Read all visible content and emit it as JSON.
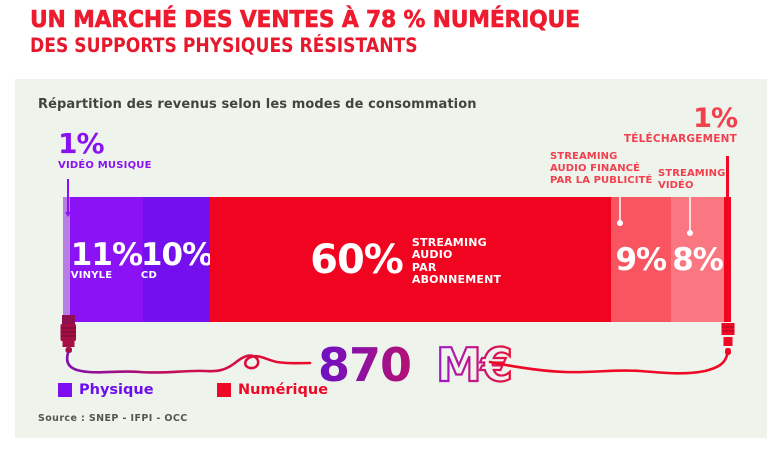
{
  "header": {
    "title": "UN MARCHÉ DES VENTES À 78 % NUMÉRIQUE",
    "subtitle": "DES SUPPORTS PHYSIQUES RÉSISTANTS"
  },
  "panel": {
    "title": "Répartition des revenus selon les modes de consommation",
    "background": "#eef3ec"
  },
  "chart_data": {
    "type": "bar",
    "title": "Répartition des revenus selon les modes de consommation",
    "unit": "% of recorded music revenue",
    "total": {
      "value": 870,
      "display_value": "870",
      "display_unit": "M€"
    },
    "segments": [
      {
        "name": "Vidéo musique",
        "value": 1,
        "display": "1%",
        "bar_label": "",
        "category": "Physique",
        "color": "#b77fe6"
      },
      {
        "name": "Vinyle",
        "value": 11,
        "display": "11%",
        "bar_label": "VINYLE",
        "category": "Physique",
        "color": "#8a12f4"
      },
      {
        "name": "CD",
        "value": 10,
        "display": "10%",
        "bar_label": "CD",
        "category": "Physique",
        "color": "#7410ed"
      },
      {
        "name": "Streaming audio par abonnement",
        "value": 60,
        "display": "60%",
        "bar_label": "STREAMING AUDIO\nPAR ABONNEMENT",
        "category": "Numérique",
        "color": "#f1041f"
      },
      {
        "name": "Streaming audio financé par la publicité",
        "value": 9,
        "display": "9%",
        "bar_label": "",
        "category": "Numérique",
        "color": "#f95560"
      },
      {
        "name": "Streaming vidéo",
        "value": 8,
        "display": "8%",
        "bar_label": "",
        "category": "Numérique",
        "color": "#fa7680"
      },
      {
        "name": "Téléchargement",
        "value": 1,
        "display": "1%",
        "bar_label": "",
        "category": "Numérique",
        "color": "#f1041f"
      }
    ],
    "annotations": {
      "video_musique": {
        "value": "1%",
        "label": "VIDÉO MUSIQUE"
      },
      "pub": "STREAMING\nAUDIO FINANCÉ\nPAR LA PUBLICITÉ",
      "video": "STREAMING\nVIDÉO",
      "telechargement": {
        "value": "1%",
        "label": "TÉLÉCHARGEMENT"
      }
    },
    "legend_position": "bottom-left",
    "xlim": [
      0,
      100
    ]
  },
  "legend": {
    "physique": "Physique",
    "numerique": "Numérique"
  },
  "footer": {
    "source": "Source : SNEP - IFPI - OCC"
  },
  "colors": {
    "title_red": "#ee1a2e",
    "annotation_red": "#f2404e",
    "physique_purple": "#7d0ff2",
    "numerique_red": "#ee0a26",
    "amount_gradient_from": "#6b10c9",
    "amount_gradient_to": "#cf1254",
    "jack_left": "#a50f45",
    "jack_right": "#ee0a26"
  }
}
